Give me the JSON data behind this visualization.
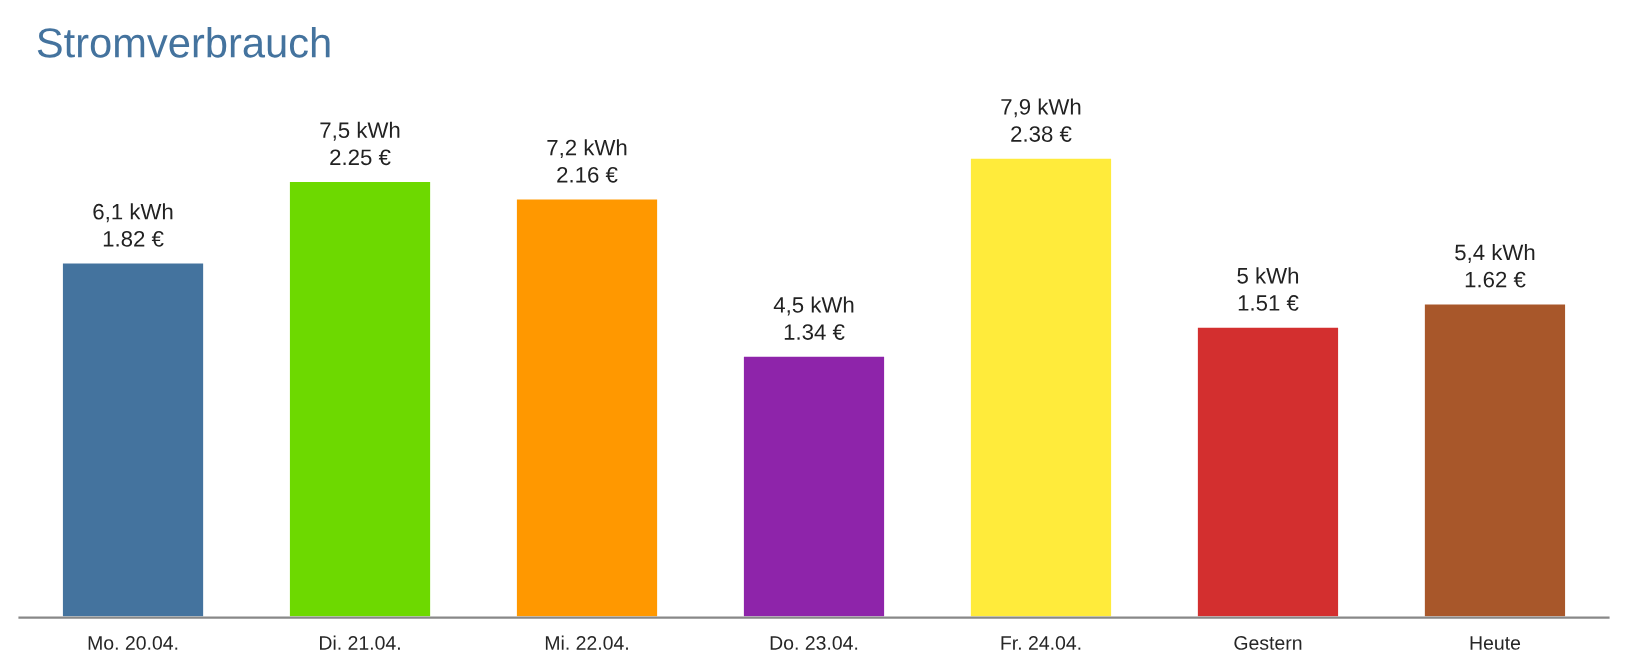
{
  "chart_data": {
    "type": "bar",
    "title": "Stromverbrauch",
    "categories": [
      "Mo. 20.04.",
      "Di. 21.04.",
      "Mi. 22.04.",
      "Do. 23.04.",
      "Fr. 24.04.",
      "Gestern",
      "Heute"
    ],
    "values": [
      6.1,
      7.5,
      7.2,
      4.5,
      7.9,
      5,
      5.4
    ],
    "colors": [
      "#44739e",
      "#6dd900",
      "#ff9800",
      "#8e24aa",
      "#ffeb3b",
      "#d32f2f",
      "#a8572a"
    ],
    "value_labels": [
      "6,1 kWh\n1.82 €",
      "7,5 kWh\n2.25 €",
      "7,2 kWh\n2.16 €",
      "4,5 kWh\n1.34 €",
      "7,9 kWh\n2.38 €",
      "5 kWh\n1.51 €",
      "5,4 kWh\n1.62 €"
    ],
    "tick_labels": "x",
    "grid": false,
    "legend": false
  }
}
